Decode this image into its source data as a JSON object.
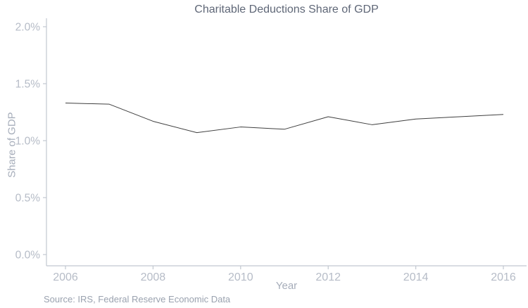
{
  "chart_data": {
    "type": "line",
    "title": "Charitable Deductions Share of GDP",
    "xlabel": "Year",
    "ylabel": "Share of GDP",
    "source": "Source: IRS, Federal Reserve Economic Data",
    "x": [
      2006,
      2007,
      2008,
      2009,
      2010,
      2011,
      2012,
      2013,
      2014,
      2015,
      2016
    ],
    "series": [
      {
        "name": "Charitable deductions share of GDP (%)",
        "values": [
          1.33,
          1.32,
          1.17,
          1.07,
          1.12,
          1.1,
          1.21,
          1.14,
          1.19,
          1.21,
          1.23
        ]
      }
    ],
    "xlim": [
      2006,
      2016
    ],
    "ylim": [
      0.0,
      2.0
    ],
    "xticks": [
      2006,
      2008,
      2010,
      2012,
      2014,
      2016
    ],
    "xtick_labels": [
      "2006",
      "2008",
      "2010",
      "2012",
      "2014",
      "2016"
    ],
    "yticks": [
      0.0,
      0.5,
      1.0,
      1.5,
      2.0
    ],
    "ytick_labels": [
      "0.0%",
      "0.5%",
      "1.0%",
      "1.5%",
      "2.0%"
    ],
    "grid": false,
    "legend": "none",
    "colors": {
      "line": "#3f3f3f",
      "axis": "#c2c8d0",
      "tick_label": "#b6bcc7",
      "axis_title": "#a6adba",
      "title": "#5f6777",
      "source": "#9aa2af",
      "background": "#ffffff"
    }
  }
}
